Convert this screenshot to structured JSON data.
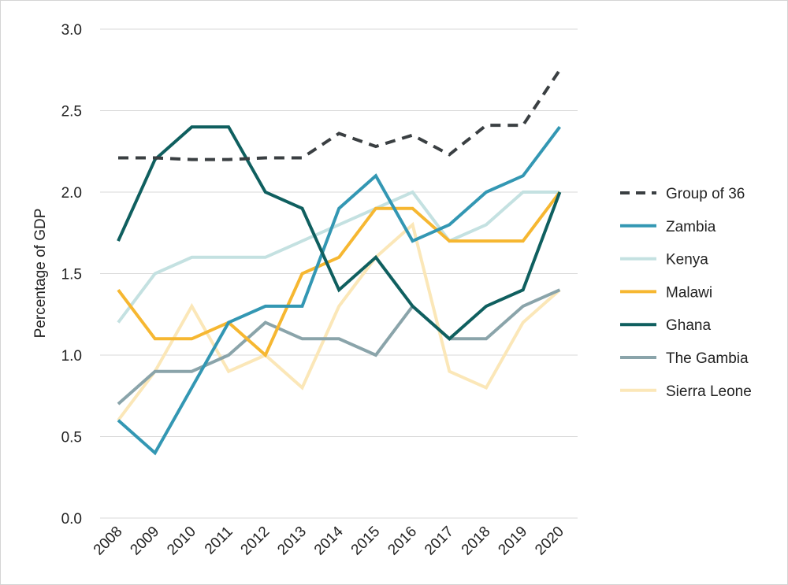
{
  "chart_data": {
    "type": "line",
    "title": "",
    "xlabel": "",
    "ylabel": "Percentage of GDP",
    "ylim": [
      0,
      3.0
    ],
    "yticks": [
      "0.0",
      "0.5",
      "1.0",
      "1.5",
      "2.0",
      "2.5",
      "3.0"
    ],
    "grid": "horizontal",
    "legend_position": "right",
    "x": [
      "2008",
      "2009",
      "2010",
      "2011",
      "2012",
      "2013",
      "2014",
      "2015",
      "2016",
      "2017",
      "2018",
      "2019",
      "2020"
    ],
    "series": [
      {
        "name": "Group of 36",
        "color": "#3a3f42",
        "dashed": true,
        "values": [
          2.21,
          2.21,
          2.2,
          2.2,
          2.21,
          2.21,
          2.36,
          2.28,
          2.35,
          2.23,
          2.41,
          2.41,
          2.75
        ]
      },
      {
        "name": "Zambia",
        "color": "#3397b3",
        "dashed": false,
        "values": [
          0.6,
          0.4,
          0.8,
          1.2,
          1.3,
          1.3,
          1.9,
          2.1,
          1.7,
          1.8,
          2.0,
          2.1,
          2.4
        ]
      },
      {
        "name": "Kenya",
        "color": "#c4e1e1",
        "dashed": false,
        "values": [
          1.2,
          1.5,
          1.6,
          1.6,
          1.6,
          1.7,
          1.8,
          1.9,
          2.0,
          1.7,
          1.8,
          2.0,
          2.0
        ]
      },
      {
        "name": "Malawi",
        "color": "#f6b731",
        "dashed": false,
        "values": [
          1.4,
          1.1,
          1.1,
          1.2,
          1.0,
          1.5,
          1.6,
          1.9,
          1.9,
          1.7,
          1.7,
          1.7,
          2.0
        ]
      },
      {
        "name": "Ghana",
        "color": "#0f5f5f",
        "dashed": false,
        "values": [
          1.7,
          2.2,
          2.4,
          2.4,
          2.0,
          1.9,
          1.4,
          1.6,
          1.3,
          1.1,
          1.3,
          1.4,
          2.0
        ]
      },
      {
        "name": "The Gambia",
        "color": "#8aa4aa",
        "dashed": false,
        "values": [
          0.7,
          0.9,
          0.9,
          1.0,
          1.2,
          1.1,
          1.1,
          1.0,
          1.3,
          1.1,
          1.1,
          1.3,
          1.4
        ]
      },
      {
        "name": "Sierra Leone",
        "color": "#fbe7b8",
        "dashed": false,
        "values": [
          0.6,
          0.9,
          1.3,
          0.9,
          1.0,
          0.8,
          1.3,
          1.6,
          1.8,
          0.9,
          0.8,
          1.2,
          1.4
        ]
      }
    ],
    "draw_order": [
      "Sierra Leone",
      "The Gambia",
      "Kenya",
      "Malawi",
      "Zambia",
      "Ghana",
      "Group of 36"
    ]
  }
}
